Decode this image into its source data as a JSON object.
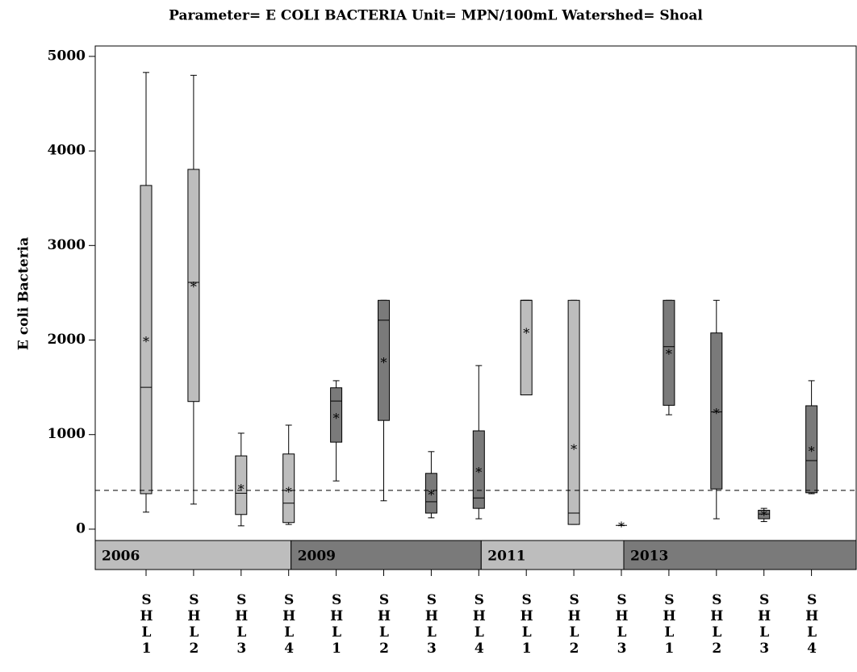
{
  "chart_data": {
    "type": "box",
    "title": "Parameter= E COLI BACTERIA Unit= MPN/100mL Watershed= Shoal",
    "y_label": "E coli Bacteria",
    "ylim": [
      -120,
      5110
    ],
    "yticks": [
      0,
      1000,
      2000,
      3000,
      4000,
      5000
    ],
    "reference_line": 410,
    "groups": [
      {
        "name": "2006",
        "color": "#bdbdbd",
        "categories": [
          "SHL1",
          "SHL2",
          "SHL3",
          "SHL4"
        ],
        "boxes": [
          {
            "min": 180,
            "q1": 375,
            "median": 1500,
            "q3": 3635,
            "max": 4830,
            "mean": 2000
          },
          {
            "min": 265,
            "q1": 1350,
            "median": 2610,
            "q3": 3805,
            "max": 4800,
            "mean": 2580
          },
          {
            "min": 35,
            "q1": 155,
            "median": 380,
            "q3": 775,
            "max": 1015,
            "mean": 440
          },
          {
            "min": 50,
            "q1": 70,
            "median": 275,
            "q3": 795,
            "max": 1100,
            "mean": 410
          }
        ]
      },
      {
        "name": "2009",
        "color": "#7a7a7a",
        "categories": [
          "SHL1",
          "SHL2",
          "SHL3",
          "SHL4"
        ],
        "boxes": [
          {
            "min": 510,
            "q1": 920,
            "median": 1355,
            "q3": 1495,
            "max": 1570,
            "mean": 1190
          },
          {
            "min": 300,
            "q1": 1150,
            "median": 2210,
            "q3": 2420,
            "max": 2420,
            "mean": 1780
          },
          {
            "min": 120,
            "q1": 170,
            "median": 290,
            "q3": 590,
            "max": 820,
            "mean": 380
          },
          {
            "min": 110,
            "q1": 220,
            "median": 330,
            "q3": 1040,
            "max": 1730,
            "mean": 620
          }
        ]
      },
      {
        "name": "2011",
        "color": "#bdbdbd",
        "categories": [
          "SHL1",
          "SHL2",
          "SHL3"
        ],
        "boxes": [
          {
            "min": 1420,
            "q1": 1420,
            "median": 2420,
            "q3": 2420,
            "max": 2420,
            "mean": 2090
          },
          {
            "min": 50,
            "q1": 50,
            "median": 170,
            "q3": 2420,
            "max": 2420,
            "mean": 860
          },
          {
            "min": 40,
            "q1": 40,
            "median": 40,
            "q3": 40,
            "max": 40,
            "mean": 40
          }
        ]
      },
      {
        "name": "2013",
        "color": "#7a7a7a",
        "categories": [
          "SHL1",
          "SHL2",
          "SHL3",
          "SHL4"
        ],
        "boxes": [
          {
            "min": 1210,
            "q1": 1310,
            "median": 1930,
            "q3": 2420,
            "max": 2420,
            "mean": 1870
          },
          {
            "min": 110,
            "q1": 425,
            "median": 1240,
            "q3": 2075,
            "max": 2420,
            "mean": 1240
          },
          {
            "min": 80,
            "q1": 110,
            "median": 160,
            "q3": 200,
            "max": 220,
            "mean": 160
          },
          {
            "min": 375,
            "q1": 385,
            "median": 725,
            "q3": 1305,
            "max": 1570,
            "mean": 840
          }
        ]
      }
    ]
  }
}
